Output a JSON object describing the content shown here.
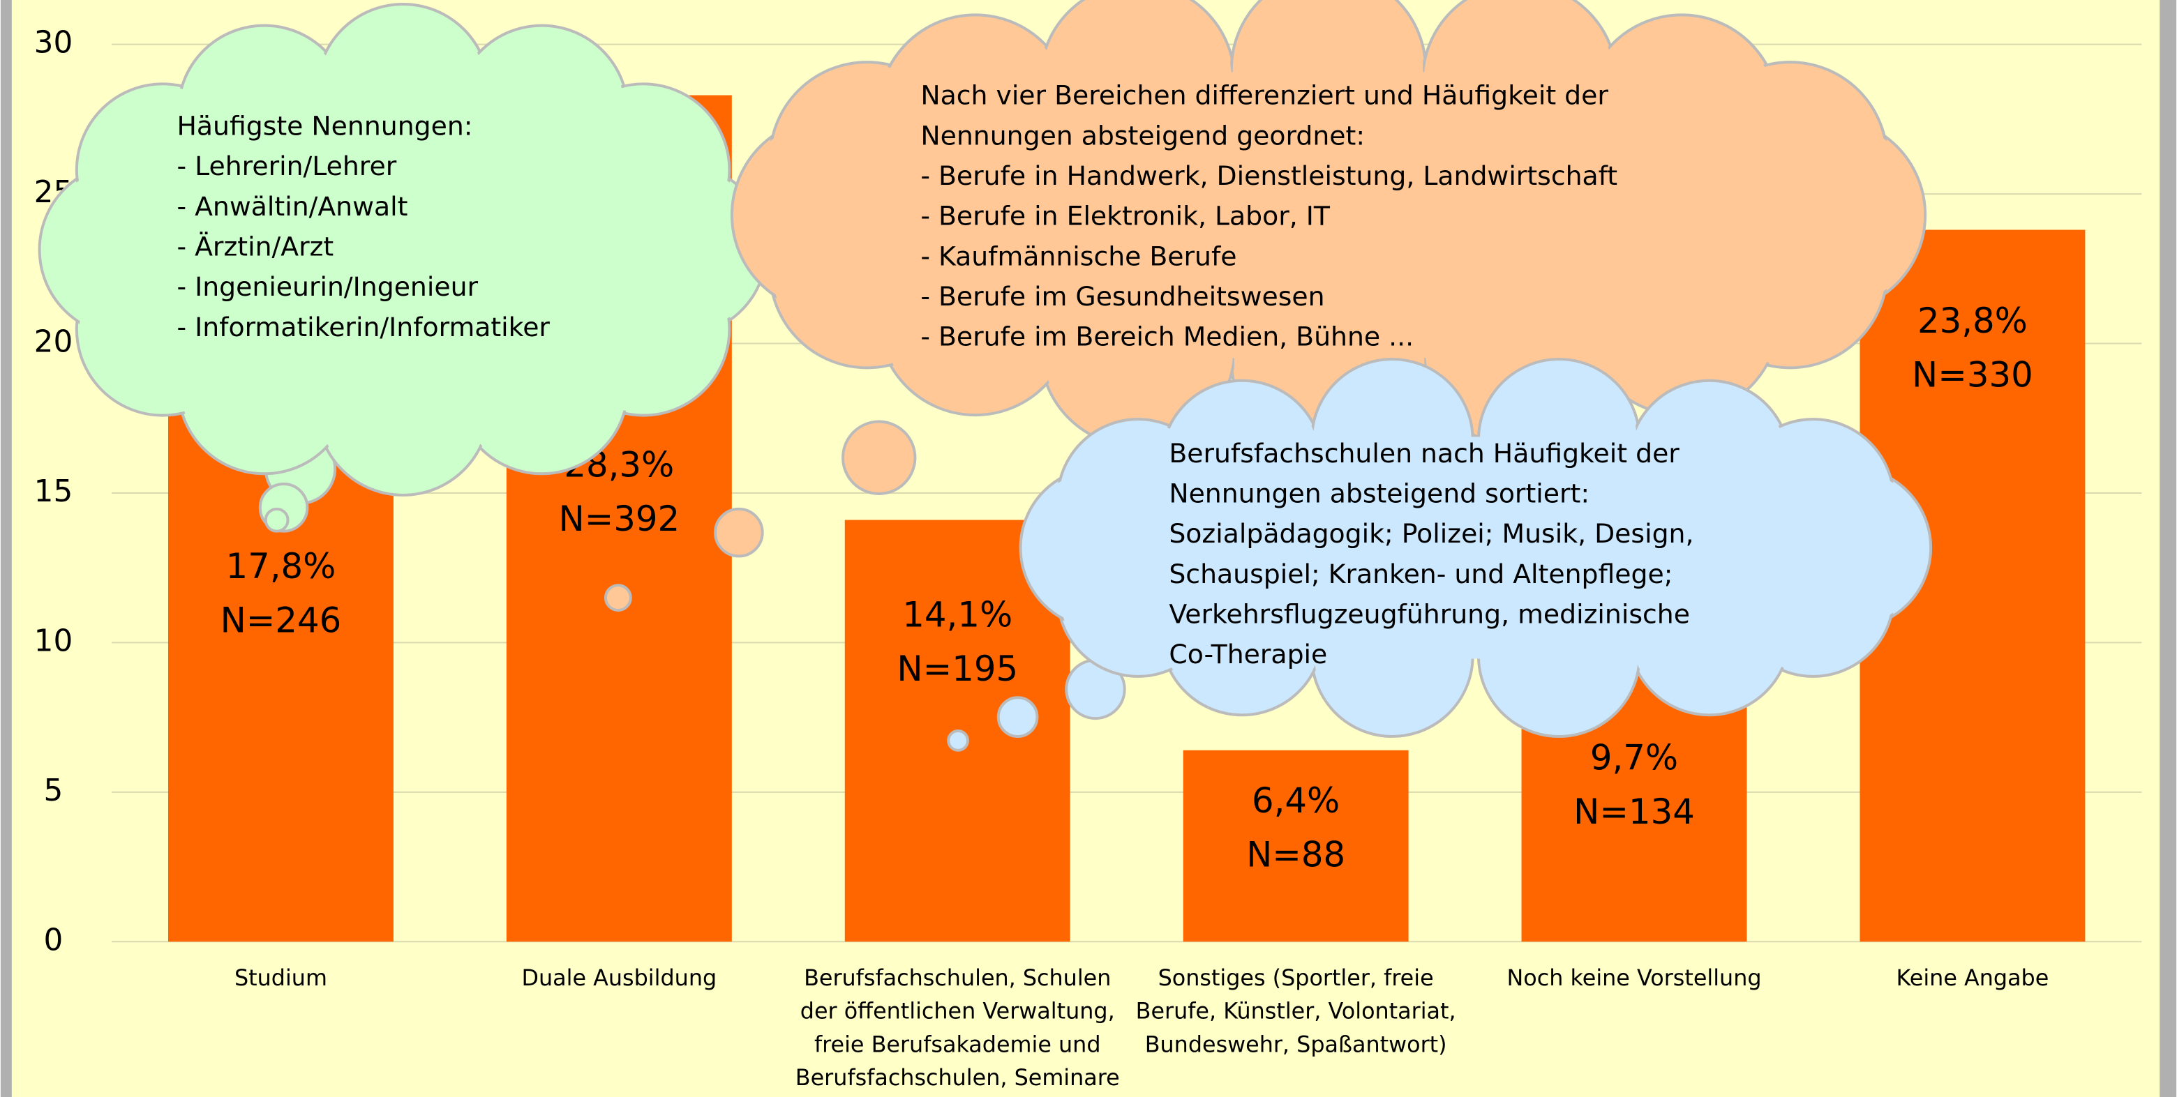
{
  "chart_data": {
    "type": "bar",
    "categories": [
      [
        "Studium"
      ],
      [
        "Duale Ausbildung"
      ],
      [
        "Berufsfachschulen, Schulen",
        "der öffentlichen Verwaltung,",
        "freie Berufsakademie und",
        "Berufsfachschulen, Seminare"
      ],
      [
        "Sonstiges (Sportler, freie",
        "Berufe, Künstler, Volontariat,",
        "Bundeswehr, Spaßantwort)"
      ],
      [
        "Noch keine Vorstellung"
      ],
      [
        "Keine Angabe"
      ]
    ],
    "values": [
      17.8,
      28.3,
      14.1,
      6.4,
      9.7,
      23.8
    ],
    "value_labels": [
      "17,8%",
      "28,3%",
      "14,1%",
      "6,4%",
      "9,7%",
      "23,8%"
    ],
    "count_labels": [
      "N=246",
      "N=392",
      "N=195",
      "N=88",
      "N=134",
      "N=330"
    ],
    "color": "#ff6600",
    "ylim": [
      0,
      30
    ],
    "yticks": [
      0,
      5,
      10,
      15,
      20,
      25,
      30
    ],
    "grid": true,
    "annotations": [
      {
        "lines": [
          "Häufigste Nennungen:",
          "- Lehrerin/Lehrer",
          "- Anwältin/Anwalt",
          "- Ärztin/Arzt",
          "- Ingenieurin/Ingenieur",
          "- Informatikerin/Informatiker"
        ]
      },
      {
        "lines": [
          "Nach vier Bereichen differenziert und Häufigkeit der",
          "Nennungen absteigend geordnet:",
          "- Berufe in Handwerk, Dienstleistung, Landwirtschaft",
          "- Berufe in Elektronik, Labor, IT",
          "- Kaufmännische Berufe",
          "- Berufe im Gesundheitswesen",
          "- Berufe im Bereich Medien, Bühne ..."
        ]
      },
      {
        "lines": [
          "Berufsfachschulen nach Häufigkeit der",
          "Nennungen absteigend sortiert:",
          "Sozialpädagogik; Polizei; Musik, Design,",
          "Schauspiel; Kranken- und Altenpflege;",
          "Verkehrsflugzeugführung, medizinische",
          "Co-Therapie"
        ]
      }
    ]
  }
}
